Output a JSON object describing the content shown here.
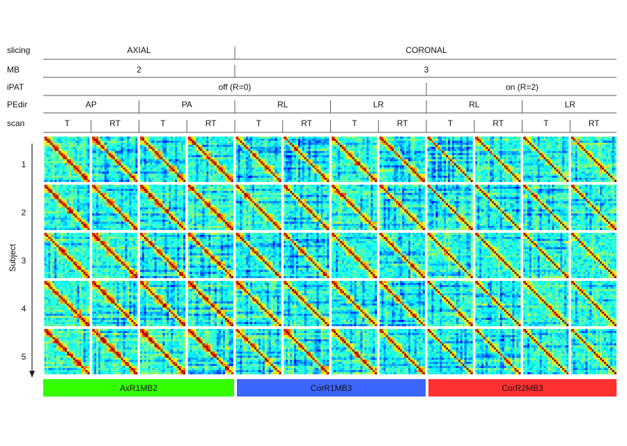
{
  "header_rows": [
    {
      "label": "slicing",
      "cells": [
        {
          "text": "AXIAL",
          "span": 4
        },
        {
          "text": "CORONAL",
          "span": 8
        }
      ]
    },
    {
      "label": "MB",
      "cells": [
        {
          "text": "2",
          "span": 4
        },
        {
          "text": "3",
          "span": 8
        }
      ]
    },
    {
      "label": "iPAT",
      "cells": [
        {
          "text": "off (R=0)",
          "span": 8
        },
        {
          "text": "on (R=2)",
          "span": 4
        }
      ]
    },
    {
      "label": "PEdir",
      "cells": [
        {
          "text": "AP",
          "span": 2
        },
        {
          "text": "PA",
          "span": 2
        },
        {
          "text": "RL",
          "span": 2
        },
        {
          "text": "LR",
          "span": 2
        },
        {
          "text": "RL",
          "span": 2
        },
        {
          "text": "LR",
          "span": 2
        }
      ]
    },
    {
      "label": "scan",
      "cells": [
        {
          "text": "T",
          "span": 1
        },
        {
          "text": "RT",
          "span": 1
        },
        {
          "text": "T",
          "span": 1
        },
        {
          "text": "RT",
          "span": 1
        },
        {
          "text": "T",
          "span": 1
        },
        {
          "text": "RT",
          "span": 1
        },
        {
          "text": "T",
          "span": 1
        },
        {
          "text": "RT",
          "span": 1
        },
        {
          "text": "T",
          "span": 1
        },
        {
          "text": "RT",
          "span": 1
        },
        {
          "text": "T",
          "span": 1
        },
        {
          "text": "RT",
          "span": 1
        }
      ]
    }
  ],
  "subject_axis_label": "Subject",
  "subjects": [
    "1",
    "2",
    "3",
    "4",
    "5"
  ],
  "groups": [
    {
      "label": "AxR1MB2",
      "span": 4,
      "color": "#33ff00",
      "matrix_intensity": 1.0
    },
    {
      "label": "CorR1MB3",
      "span": 4,
      "color": "#3d66ff",
      "matrix_intensity": 0.85
    },
    {
      "label": "CorR2MB3",
      "span": 4,
      "color": "#ff3030",
      "matrix_intensity": 0.55
    }
  ],
  "colors": {
    "colormap": "jet",
    "header_rule": "#555555",
    "separator": "#555555",
    "text": "#111111"
  }
}
